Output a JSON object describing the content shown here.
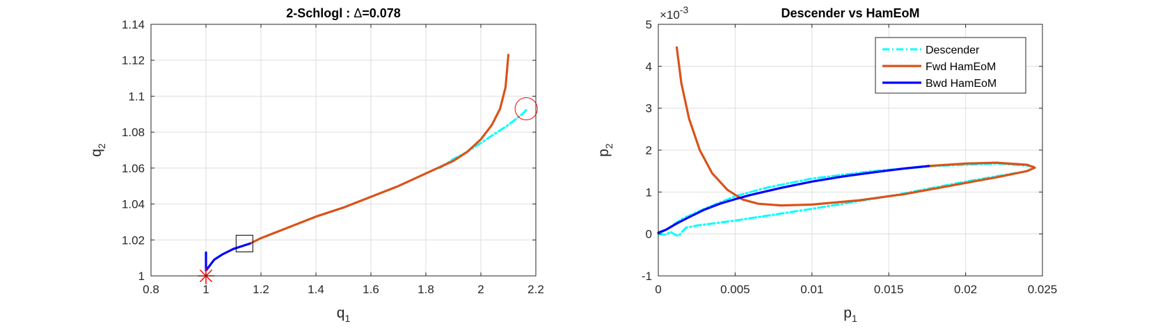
{
  "colors": {
    "descender": "#00FFFF",
    "fwd": "#D95319",
    "bwd": "#0000FF",
    "marker": "#FF0000",
    "grid": "#DEDEDE",
    "axis": "#262626"
  },
  "chart_data": [
    {
      "type": "line",
      "title_prefix": "2-Schlogl : ",
      "title_delta": "Δ",
      "title_suffix": "=0.078",
      "xlabel": "q",
      "xlabel_sub": "1",
      "ylabel": "q",
      "ylabel_sub": "2",
      "xlim": [
        0.8,
        2.2
      ],
      "ylim": [
        1.0,
        1.14
      ],
      "xticks": [
        "0.8",
        "1",
        "1.2",
        "1.4",
        "1.6",
        "1.8",
        "2",
        "2.2"
      ],
      "yticks": [
        "1",
        "1.02",
        "1.04",
        "1.06",
        "1.08",
        "1.1",
        "1.12",
        "1.14"
      ],
      "grid": true,
      "series": [
        {
          "name": "Descender",
          "style": "dash-dot",
          "x": [
            1.85,
            1.9,
            1.95,
            2.0,
            2.05,
            2.1,
            2.15,
            2.17
          ],
          "y": [
            1.06,
            1.065,
            1.069,
            1.074,
            1.079,
            1.084,
            1.09,
            1.093
          ]
        },
        {
          "name": "Fwd HamEoM",
          "style": "solid",
          "x": [
            1.16,
            1.2,
            1.3,
            1.4,
            1.5,
            1.6,
            1.7,
            1.8,
            1.9,
            1.95,
            2.0,
            2.04,
            2.07,
            2.09,
            2.1
          ],
          "y": [
            1.018,
            1.021,
            1.027,
            1.033,
            1.038,
            1.044,
            1.05,
            1.057,
            1.064,
            1.069,
            1.076,
            1.084,
            1.093,
            1.105,
            1.123
          ]
        },
        {
          "name": "Bwd HamEoM",
          "style": "solid",
          "x": [
            1.0,
            1.0,
            1.0,
            1.01,
            1.03,
            1.06,
            1.1,
            1.16
          ],
          "y": [
            1.013,
            1.007,
            1.003,
            1.005,
            1.009,
            1.012,
            1.015,
            1.018
          ]
        }
      ],
      "markers": [
        {
          "kind": "asterisk",
          "x": 1.0,
          "y": 1.0
        },
        {
          "kind": "square",
          "x": 1.14,
          "y": 1.018
        },
        {
          "kind": "circle",
          "x": 2.165,
          "y": 1.093
        }
      ]
    },
    {
      "type": "line",
      "title": "Descender vs HamEoM",
      "xlabel": "p",
      "xlabel_sub": "1",
      "ylabel": "p",
      "ylabel_sub": "2",
      "exponent": "×10",
      "exponent_power": "-3",
      "xlim": [
        0,
        0.025
      ],
      "ylim": [
        -1,
        5
      ],
      "xticks": [
        "0",
        "0.005",
        "0.01",
        "0.015",
        "0.02",
        "0.025"
      ],
      "yticks": [
        "-1",
        "0",
        "1",
        "2",
        "3",
        "4",
        "5"
      ],
      "grid": true,
      "legend_position": "top-right",
      "legend": [
        "Descender",
        "Fwd HamEoM",
        "Bwd HamEoM"
      ],
      "series": [
        {
          "name": "Descender",
          "style": "dash-dot",
          "x": [
            0.0,
            0.0005,
            0.0008,
            0.001,
            0.0013,
            0.0018,
            0.0025,
            0.005,
            0.01,
            0.015,
            0.02,
            0.024,
            0.0245,
            0.024,
            0.022,
            0.018,
            0.014,
            0.01,
            0.007,
            0.005,
            0.003,
            0.0015,
            0.0005,
            0.0
          ],
          "y": [
            0.0,
            -0.02,
            0.05,
            0.0,
            -0.05,
            0.15,
            0.2,
            0.32,
            0.6,
            0.9,
            1.25,
            1.5,
            1.6,
            1.63,
            1.68,
            1.62,
            1.5,
            1.32,
            1.1,
            0.9,
            0.6,
            0.35,
            0.1,
            0.0
          ]
        },
        {
          "name": "Fwd HamEoM",
          "style": "solid",
          "x": [
            0.0012,
            0.0015,
            0.002,
            0.0027,
            0.0035,
            0.0045,
            0.0055,
            0.0065,
            0.008,
            0.01,
            0.013,
            0.016,
            0.019,
            0.022,
            0.024,
            0.0245,
            0.024,
            0.022,
            0.02,
            0.0176
          ],
          "y": [
            4.45,
            3.6,
            2.75,
            2.0,
            1.45,
            1.05,
            0.82,
            0.72,
            0.68,
            0.7,
            0.8,
            0.95,
            1.15,
            1.35,
            1.5,
            1.58,
            1.65,
            1.7,
            1.68,
            1.62
          ]
        },
        {
          "name": "Bwd HamEoM",
          "style": "solid",
          "x": [
            0.0,
            0.0005,
            0.0012,
            0.002,
            0.003,
            0.004,
            0.005,
            0.006,
            0.008,
            0.01,
            0.012,
            0.014,
            0.016,
            0.0176
          ],
          "y": [
            0.03,
            0.1,
            0.25,
            0.4,
            0.58,
            0.72,
            0.83,
            0.93,
            1.1,
            1.25,
            1.37,
            1.47,
            1.56,
            1.62
          ]
        }
      ]
    }
  ]
}
